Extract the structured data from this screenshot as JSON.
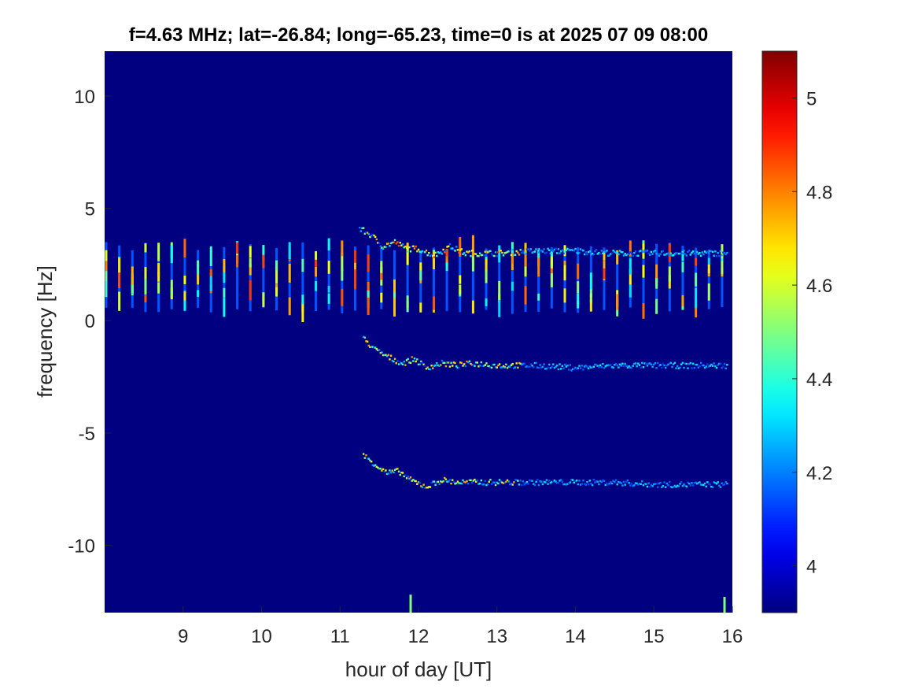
{
  "chart_data": {
    "type": "heatmap",
    "title": "f=4.63 MHz;  lat=-26.84; long=-65.23, time=0 is at 2025 07 09 08:00",
    "xlabel": "hour of day [UT]",
    "ylabel": "frequency [Hz]",
    "xlim": [
      8,
      16
    ],
    "ylim": [
      -13,
      12
    ],
    "x_ticks": [
      9,
      10,
      11,
      12,
      13,
      14,
      15,
      16
    ],
    "y_ticks": [
      -10,
      -5,
      0,
      5,
      10
    ],
    "colorbar": {
      "colormap": "jet",
      "clim": [
        3.9,
        5.1
      ],
      "ticks": [
        4,
        4.2,
        4.4,
        4.6,
        4.8,
        5
      ]
    },
    "background_value": 3.9,
    "grid": false,
    "vertical_stripes": {
      "x_start": 8.02,
      "x_end": 15.87,
      "spacing_hours": 0.167,
      "y_range": [
        0.3,
        3.5
      ],
      "peak_value": 4.9
    },
    "traces": [
      {
        "name": "",
        "value": 4.6,
        "points": [
          [
            11.25,
            4.1
          ],
          [
            11.4,
            3.8
          ],
          [
            11.55,
            3.3
          ],
          [
            11.7,
            3.5
          ],
          [
            11.85,
            3.2
          ],
          [
            12.0,
            3.2
          ],
          [
            12.2,
            2.9
          ],
          [
            12.4,
            3.3
          ],
          [
            12.6,
            3.0
          ],
          [
            13.0,
            3.0
          ],
          [
            13.5,
            3.1
          ],
          [
            14.0,
            3.1
          ],
          [
            14.5,
            3.0
          ],
          [
            15.0,
            3.0
          ],
          [
            15.5,
            3.0
          ],
          [
            15.95,
            3.0
          ]
        ]
      },
      {
        "name": "",
        "value": 4.5,
        "points": [
          [
            11.3,
            -0.8
          ],
          [
            11.45,
            -1.3
          ],
          [
            11.6,
            -1.6
          ],
          [
            11.8,
            -1.9
          ],
          [
            11.95,
            -1.7
          ],
          [
            12.1,
            -2.1
          ],
          [
            12.3,
            -1.9
          ],
          [
            12.5,
            -2.0
          ],
          [
            12.7,
            -1.9
          ],
          [
            13.0,
            -2.0
          ],
          [
            13.5,
            -2.0
          ],
          [
            14.0,
            -2.1
          ],
          [
            14.5,
            -2.0
          ],
          [
            15.0,
            -2.0
          ],
          [
            15.5,
            -2.0
          ],
          [
            15.95,
            -2.0
          ]
        ]
      },
      {
        "name": "",
        "value": 4.5,
        "points": [
          [
            11.3,
            -6.0
          ],
          [
            11.45,
            -6.4
          ],
          [
            11.6,
            -6.8
          ],
          [
            11.75,
            -6.7
          ],
          [
            11.9,
            -7.1
          ],
          [
            12.1,
            -7.4
          ],
          [
            12.3,
            -7.1
          ],
          [
            12.5,
            -7.2
          ],
          [
            12.8,
            -7.2
          ],
          [
            13.2,
            -7.2
          ],
          [
            13.6,
            -7.2
          ],
          [
            14.0,
            -7.2
          ],
          [
            14.5,
            -7.2
          ],
          [
            15.0,
            -7.3
          ],
          [
            15.5,
            -7.3
          ],
          [
            15.95,
            -7.3
          ]
        ]
      }
    ],
    "spikes": [
      {
        "x": 11.9,
        "y_range": [
          -13,
          -12.2
        ]
      },
      {
        "x": 15.9,
        "y_range": [
          -13,
          -12.3
        ]
      }
    ]
  }
}
